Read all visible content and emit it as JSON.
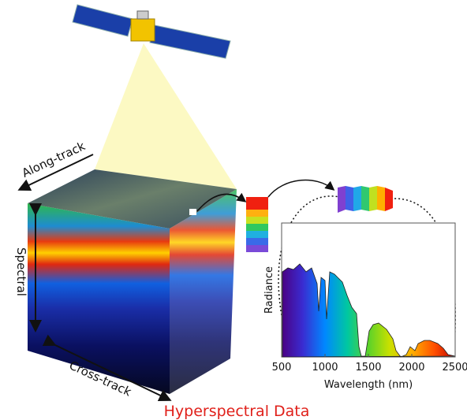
{
  "labels": {
    "along_track": "Along-track",
    "spectral": "Spectral",
    "cross_track": "Cross-track"
  },
  "plot": {
    "y_label": "Radiance",
    "x_label": "Wavelength (nm)",
    "xlim": [
      500,
      2500
    ],
    "xticks": [
      500,
      1000,
      1500,
      2000,
      2500
    ]
  },
  "caption": "Hyperspectral Data"
}
